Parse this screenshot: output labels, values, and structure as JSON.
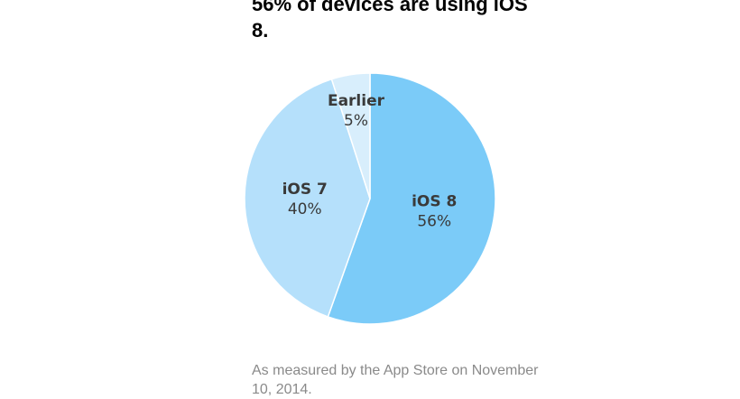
{
  "chart_data": {
    "type": "pie",
    "title": "56% of devices are using iOS 8.",
    "footnote": "As measured by the App Store on November 10, 2014.",
    "slices": [
      {
        "label": "iOS 8",
        "value": 56,
        "value_label": "56%",
        "color": "#7bcbf8"
      },
      {
        "label": "iOS 7",
        "value": 40,
        "value_label": "40%",
        "color": "#b5e0fb"
      },
      {
        "label": "Earlier",
        "value": 5,
        "value_label": "5%",
        "color": "#d8eefc"
      }
    ]
  }
}
